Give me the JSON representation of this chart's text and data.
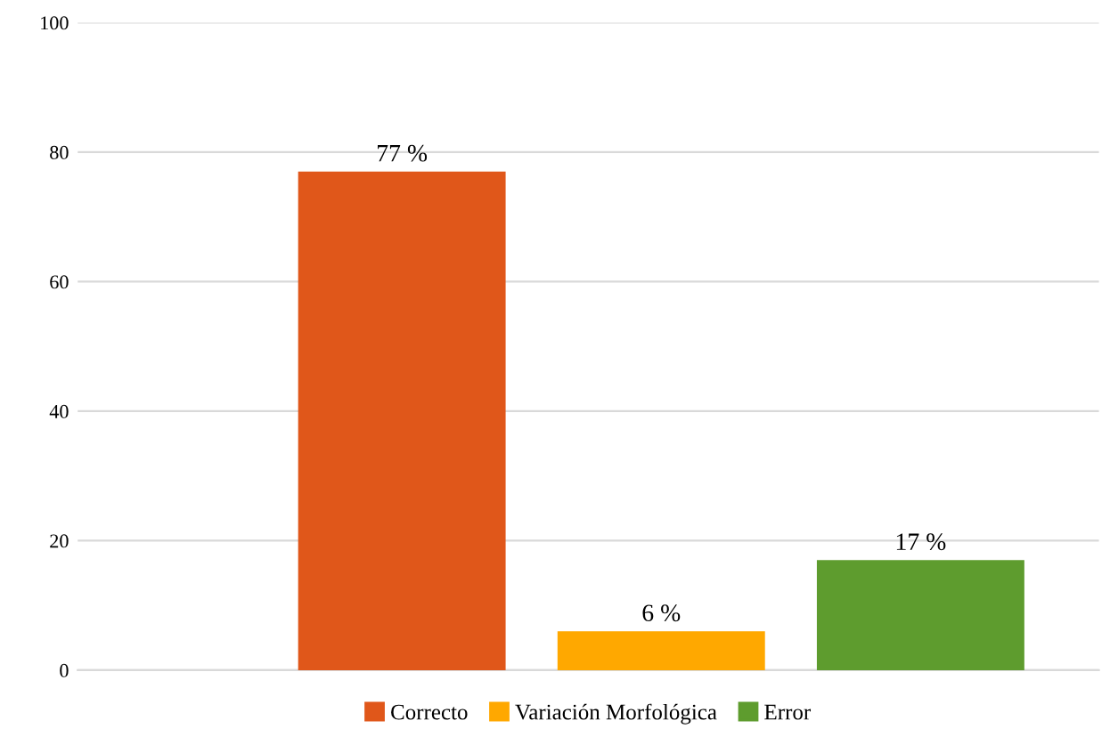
{
  "chart_data": {
    "type": "bar",
    "categories": [
      null
    ],
    "series": [
      {
        "name": "Correcto",
        "color": "#e0571a",
        "values": [
          77
        ],
        "value_labels": [
          "77 %"
        ]
      },
      {
        "name": "Variación Morfológica",
        "color": "#ffa800",
        "values": [
          6
        ],
        "value_labels": [
          "6 %"
        ]
      },
      {
        "name": "Error",
        "color": "#5e9c2e",
        "values": [
          17
        ],
        "value_labels": [
          "17 %"
        ]
      }
    ],
    "ylim": [
      0,
      100
    ],
    "yticks": [
      0,
      20,
      40,
      60,
      80,
      100
    ],
    "grid": "y",
    "legend": "bottom"
  }
}
